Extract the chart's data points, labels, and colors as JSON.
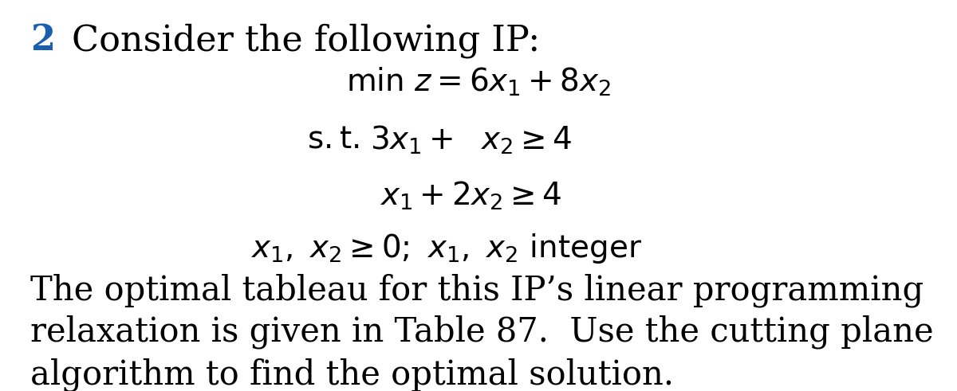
{
  "background_color": "#ffffff",
  "number_text": "2",
  "number_color": "#1a5fad",
  "number_fontsize": 32,
  "title_text": "Consider the following IP:",
  "title_fontsize": 32,
  "para_text1": "The optimal tableau for this IP’s linear programming",
  "para_text2": "relaxation is given in Table 87.  Use the cutting plane",
  "para_text3": "algorithm to find the optimal solution.",
  "para_fontsize": 30,
  "math_fontsize": 28,
  "fig_width": 12.0,
  "fig_height": 4.91,
  "dpi": 100
}
